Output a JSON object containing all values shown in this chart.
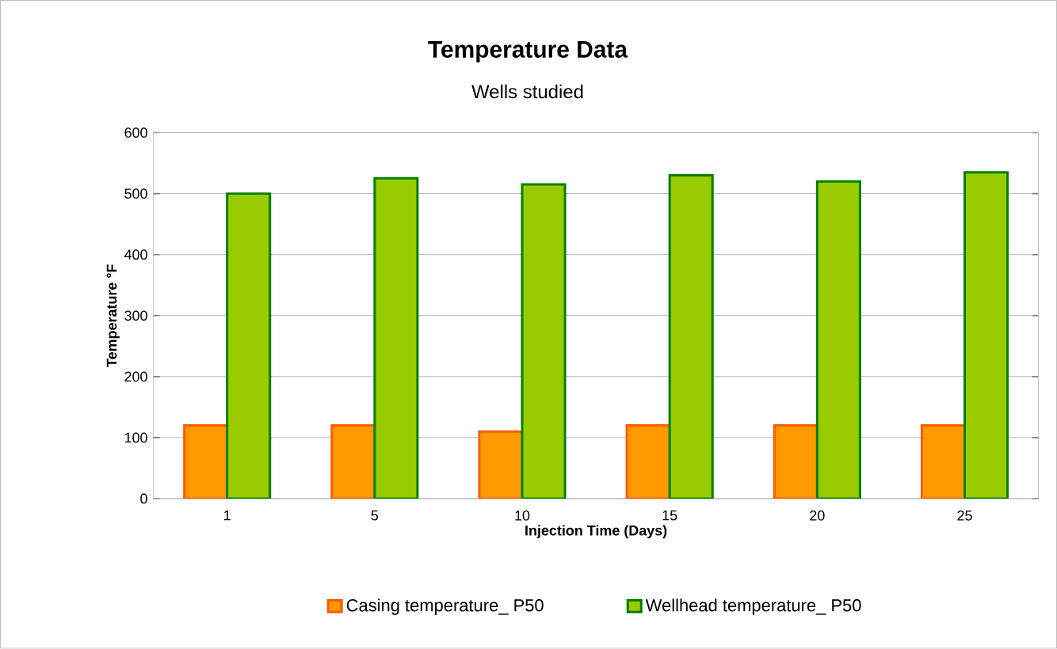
{
  "chart_data": {
    "type": "bar",
    "title": "Temperature Data",
    "subtitle": "Wells studied",
    "xlabel": "Injection Time (Days)",
    "ylabel": "Temperature °F",
    "categories": [
      "1",
      "5",
      "10",
      "15",
      "20",
      "25"
    ],
    "series": [
      {
        "name": "Casing temperature_ P50",
        "color": "#ff9900",
        "values": [
          120,
          120,
          110,
          120,
          120,
          120
        ]
      },
      {
        "name": "Wellhead temperature_ P50",
        "color": "#99cc00",
        "values": [
          500,
          525,
          515,
          530,
          520,
          535
        ]
      }
    ],
    "ylim": [
      0,
      600
    ],
    "yticks": [
      0,
      100,
      200,
      300,
      400,
      500,
      600
    ],
    "grid": "y",
    "legend": "bottom"
  }
}
